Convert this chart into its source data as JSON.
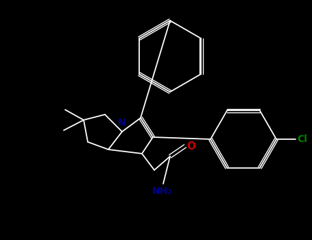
{
  "background_color": "#000000",
  "line_color": "#ffffff",
  "N_color": "#00008B",
  "O_color": "#cc0000",
  "Cl_color": "#008000",
  "lw": 1.3,
  "dbl_lw": 1.0,
  "figsize": [
    4.55,
    3.5
  ],
  "dpi": 100,
  "N_label": "N",
  "O_label": "O",
  "NH2_label": "NH₂",
  "Cl_label": "Cl",
  "N_fontsize": 10,
  "O_fontsize": 11,
  "NH2_fontsize": 10,
  "Cl_fontsize": 10
}
